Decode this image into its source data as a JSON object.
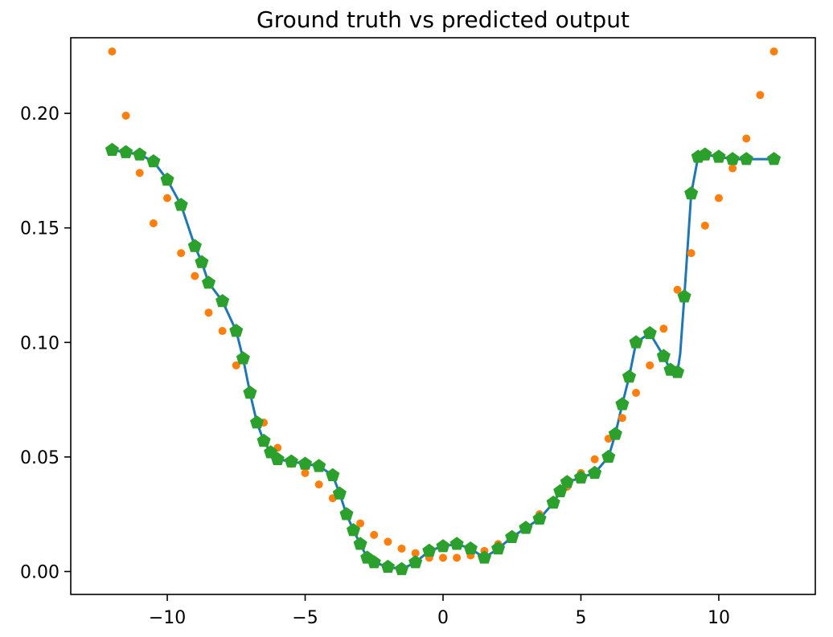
{
  "chart_data": {
    "type": "line",
    "title": "Ground truth vs predicted output",
    "xlabel": "",
    "ylabel": "",
    "xlim": [
      -13.5,
      13.5
    ],
    "ylim": [
      -0.01,
      0.233
    ],
    "x_ticks": [
      -10,
      -5,
      0,
      5,
      10
    ],
    "x_tick_labels": [
      "−10",
      "−5",
      "0",
      "5",
      "10"
    ],
    "y_ticks": [
      0.0,
      0.05,
      0.1,
      0.15,
      0.2
    ],
    "y_tick_labels": [
      "0.00",
      "0.05",
      "0.10",
      "0.15",
      "0.20"
    ],
    "grid": false,
    "series": [
      {
        "style": "line",
        "color": "#1f77b4",
        "x": [
          -12,
          -11.5,
          -11,
          -10.5,
          -10,
          -9.5,
          -9,
          -8.75,
          -8.5,
          -8,
          -7.5,
          -7.25,
          -7,
          -6.75,
          -6.5,
          -6.25,
          -6,
          -5.5,
          -5,
          -4.5,
          -4,
          -3.75,
          -3.5,
          -3.25,
          -3,
          -2.75,
          -2.5,
          -2,
          -1.5,
          -1,
          -0.5,
          0,
          0.5,
          1,
          1.5,
          2,
          2.5,
          3,
          3.5,
          4,
          4.25,
          4.5,
          5,
          5.5,
          6,
          6.25,
          6.5,
          6.75,
          7,
          7.5,
          8,
          8.25,
          8.5,
          8.6,
          8.75,
          9,
          9.25,
          9.5,
          10,
          10.5,
          11,
          12
        ],
        "y": [
          0.184,
          0.183,
          0.182,
          0.179,
          0.171,
          0.16,
          0.142,
          0.135,
          0.126,
          0.118,
          0.105,
          0.093,
          0.078,
          0.065,
          0.057,
          0.052,
          0.049,
          0.048,
          0.047,
          0.046,
          0.042,
          0.034,
          0.025,
          0.018,
          0.012,
          0.006,
          0.004,
          0.002,
          0.001,
          0.004,
          0.009,
          0.011,
          0.012,
          0.01,
          0.006,
          0.01,
          0.015,
          0.019,
          0.023,
          0.03,
          0.035,
          0.039,
          0.041,
          0.043,
          0.05,
          0.06,
          0.073,
          0.085,
          0.1,
          0.104,
          0.094,
          0.088,
          0.087,
          0.095,
          0.12,
          0.165,
          0.181,
          0.182,
          0.181,
          0.18,
          0.18,
          0.18
        ]
      },
      {
        "style": "dots",
        "color": "#ff7f0e",
        "x": [
          -12,
          -11.5,
          -11,
          -10.5,
          -10,
          -9.5,
          -9,
          -8.5,
          -8,
          -7.5,
          -7,
          -6.5,
          -6,
          -5.5,
          -5,
          -4.5,
          -4,
          -3.5,
          -3,
          -2.5,
          -2,
          -1.5,
          -1,
          -0.5,
          0,
          0.5,
          1,
          1.5,
          2,
          2.5,
          3,
          3.5,
          4,
          4.5,
          5,
          5.5,
          6,
          6.5,
          7,
          7.5,
          8,
          8.5,
          9,
          9.5,
          10,
          10.5,
          11,
          11.5,
          12
        ],
        "y": [
          0.227,
          0.199,
          0.174,
          0.152,
          0.163,
          0.139,
          0.129,
          0.113,
          0.105,
          0.09,
          0.078,
          0.065,
          0.054,
          0.047,
          0.043,
          0.038,
          0.032,
          0.026,
          0.021,
          0.016,
          0.013,
          0.01,
          0.008,
          0.006,
          0.006,
          0.006,
          0.007,
          0.009,
          0.012,
          0.015,
          0.02,
          0.025,
          0.031,
          0.037,
          0.043,
          0.049,
          0.058,
          0.067,
          0.078,
          0.09,
          0.106,
          0.123,
          0.139,
          0.151,
          0.163,
          0.176,
          0.189,
          0.208,
          0.227
        ]
      },
      {
        "style": "markers",
        "color": "#2ca02c",
        "x": [
          -12,
          -11.5,
          -11,
          -10.5,
          -10,
          -9.5,
          -9,
          -8.75,
          -8.5,
          -8,
          -7.5,
          -7.25,
          -7,
          -6.75,
          -6.5,
          -6.25,
          -6,
          -5.5,
          -5,
          -4.5,
          -4,
          -3.75,
          -3.5,
          -3.25,
          -3,
          -2.75,
          -2.5,
          -2,
          -1.5,
          -1,
          -0.5,
          0,
          0.5,
          1,
          1.5,
          2,
          2.5,
          3,
          3.5,
          4,
          4.25,
          4.5,
          5,
          5.5,
          6,
          6.25,
          6.5,
          6.75,
          7,
          7.5,
          8,
          8.25,
          8.5,
          8.75,
          9,
          9.25,
          9.5,
          10,
          10.5,
          11,
          12
        ],
        "y": [
          0.184,
          0.183,
          0.182,
          0.179,
          0.171,
          0.16,
          0.142,
          0.135,
          0.126,
          0.118,
          0.105,
          0.093,
          0.078,
          0.065,
          0.057,
          0.052,
          0.049,
          0.048,
          0.047,
          0.046,
          0.042,
          0.034,
          0.025,
          0.018,
          0.012,
          0.006,
          0.004,
          0.002,
          0.001,
          0.004,
          0.009,
          0.011,
          0.012,
          0.01,
          0.006,
          0.01,
          0.015,
          0.019,
          0.023,
          0.03,
          0.035,
          0.039,
          0.041,
          0.043,
          0.05,
          0.06,
          0.073,
          0.085,
          0.1,
          0.104,
          0.094,
          0.088,
          0.087,
          0.12,
          0.165,
          0.181,
          0.182,
          0.181,
          0.18,
          0.18,
          0.18
        ]
      }
    ]
  }
}
